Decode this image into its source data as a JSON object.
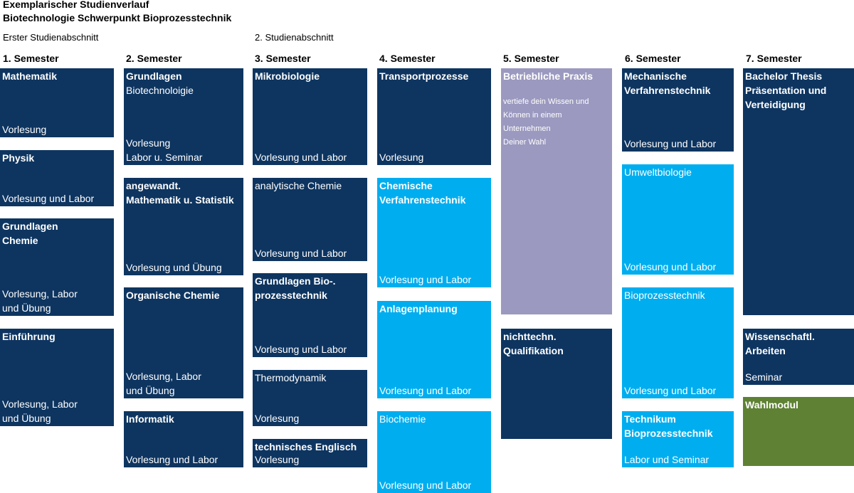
{
  "header": {
    "line1": "Exemplarischer Studienverlauf",
    "line2": "Biotechnologie Schwerpunkt Bioprozesstechnik"
  },
  "sections": {
    "first": "Erster Studienabschnitt",
    "second": "2. Studienabschnitt"
  },
  "semesters": [
    "1. Semester",
    "2. Semester",
    "3. Semester",
    "4. Semester",
    "5. Semester",
    "6. Semester",
    "7. Semester"
  ],
  "colors": {
    "dark_blue": "#0e3560",
    "light_blue": "#00aeef",
    "lavender": "#9b99bf",
    "green": "#5e8133"
  },
  "modules": {
    "mathematik": {
      "name": "Mathematik",
      "form": "Vorlesung"
    },
    "physik": {
      "name": "Physik",
      "form": "Vorlesung und Labor"
    },
    "grundlagen_chemie": {
      "name": "Grundlagen\nChemie",
      "form": "Vorlesung, Labor\nund Übung"
    },
    "einfuehrung": {
      "name": "Einführung",
      "form": "Vorlesung, Labor\nund Übung"
    },
    "grundlagen_biotech": {
      "name": "Grundlagen",
      "subtitle": "Biotechnoloigie",
      "form": "Vorlesung\nLabor u. Seminar"
    },
    "angewandt_mathe": {
      "name": "angewandt.\nMathematik u. Statistik",
      "form": "Vorlesung und Übung"
    },
    "organische_chemie": {
      "name": "Organische Chemie",
      "form": "Vorlesung, Labor\nund Übung"
    },
    "informatik": {
      "name": "Informatik",
      "form": "Vorlesung und Labor"
    },
    "mikrobiologie": {
      "name": "Mikrobiologie",
      "form": "Vorlesung und Labor"
    },
    "analytische_chemie": {
      "name": "analytische Chemie",
      "form": "Vorlesung und Labor"
    },
    "grundlagen_bioprozess": {
      "name": "Grundlagen Bio-.\nprozesstechnik",
      "form": "Vorlesung und Labor"
    },
    "thermodynamik": {
      "name": "Thermodynamik",
      "form": "Vorlesung"
    },
    "technisches_englisch": {
      "name": "technisches Englisch",
      "form": "Vorlesung"
    },
    "transportprozesse": {
      "name": "Transportprozesse",
      "form": "Vorlesung"
    },
    "chemische_vt": {
      "name": "Chemische\nVerfahrenstechnik",
      "form": "Vorlesung und Labor"
    },
    "anlagenplanung": {
      "name": "Anlagenplanung",
      "form": "Vorlesung und Labor"
    },
    "biochemie": {
      "name": "Biochemie",
      "form": "Vorlesung und Labor"
    },
    "betriebliche_praxis": {
      "name": "Betriebliche Praxis",
      "description": "vertiefe dein Wissen und\nKönnen in einem\nUnternehmen\nDeiner Wahl"
    },
    "nichttechn": {
      "name": "nichttechn.\nQualifikation"
    },
    "mechanische_vt": {
      "name": "Mechanische\nVerfahrenstechnik",
      "form": "Vorlesung und Labor"
    },
    "umweltbiologie": {
      "name": "Umweltbiologie",
      "form": "Vorlesung und Labor"
    },
    "bioprozesstechnik": {
      "name": "Bioprozesstechnik",
      "form": "Vorlesung und Labor"
    },
    "technikum": {
      "name": "Technikum\nBioprozesstechnik",
      "form": "Labor und Seminar"
    },
    "bachelor_thesis": {
      "name": "Bachelor Thesis\nPräsentation und\nVerteidigung"
    },
    "wissenschaftl": {
      "name": "Wissenschaftl.\nArbeiten",
      "form": "Seminar"
    },
    "wahlmodul": {
      "name": "Wahlmodul"
    }
  }
}
